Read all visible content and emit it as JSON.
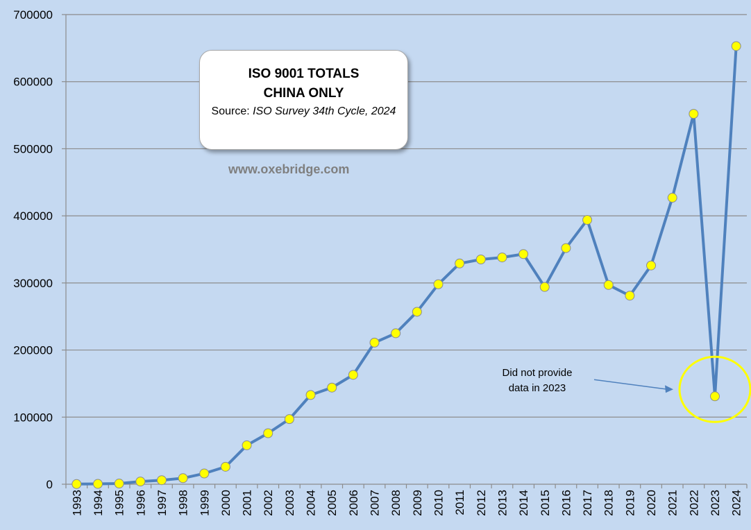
{
  "chart_data": {
    "type": "line",
    "title": "ISO 9001 TOTALS",
    "subtitle": "CHINA ONLY",
    "source_prefix": "Source:",
    "source_text": "ISO Survey 34th Cycle, 2024",
    "watermark": "www.oxebridge.com",
    "annotation": [
      "Did not provide",
      "data in 2023"
    ],
    "xlabel": "",
    "ylabel": "",
    "ylim": [
      0,
      700000
    ],
    "yticks": [
      0,
      100000,
      200000,
      300000,
      400000,
      500000,
      600000,
      700000
    ],
    "grid": true,
    "categories": [
      "1993",
      "1994",
      "1995",
      "1996",
      "1997",
      "1998",
      "1999",
      "2000",
      "2001",
      "2002",
      "2003",
      "2004",
      "2005",
      "2006",
      "2007",
      "2008",
      "2009",
      "2010",
      "2011",
      "2012",
      "2013",
      "2014",
      "2015",
      "2016",
      "2017",
      "2018",
      "2019",
      "2020",
      "2021",
      "2022",
      "2023",
      "2024"
    ],
    "series": [
      {
        "values": [
          200,
          500,
          1000,
          4000,
          6000,
          9000,
          16000,
          26000,
          58000,
          76000,
          97000,
          133000,
          144000,
          163000,
          211000,
          225000,
          257000,
          298000,
          329000,
          335000,
          338000,
          343000,
          294000,
          352000,
          394000,
          297000,
          281000,
          326000,
          427000,
          552000,
          131000,
          653000
        ],
        "color": "#4f81bd",
        "marker_color": "#ffff00"
      }
    ],
    "highlight_color": "#ffff00",
    "arrow_color": "#4f81bd"
  }
}
